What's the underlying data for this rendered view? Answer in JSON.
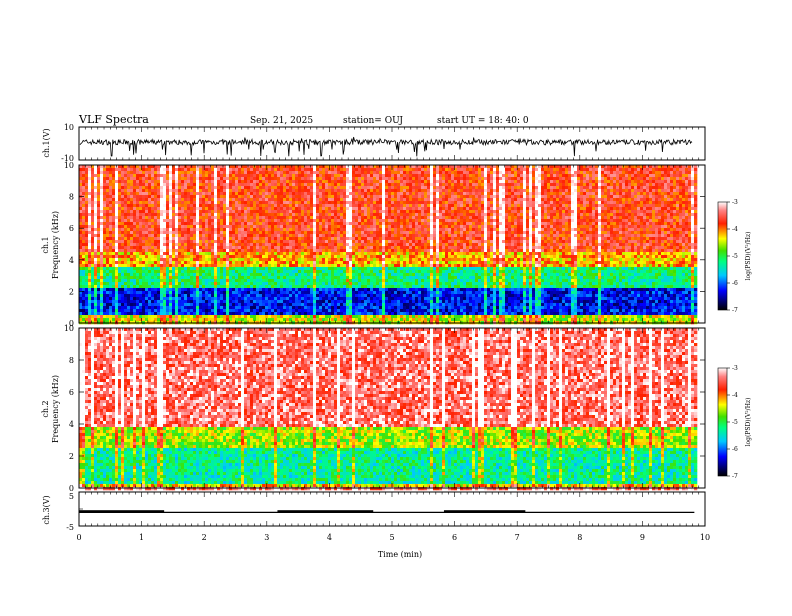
{
  "header": {
    "title": "VLF Spectra",
    "date": "Sep. 21, 2025",
    "station": "station= OUJ",
    "start_ut": "start  UT  =   18: 40: 0"
  },
  "chart_data": [
    {
      "id": "ch1-waveform",
      "type": "line",
      "ylabel": "ch.1(V)",
      "ylim": [
        -10,
        10
      ],
      "yticks": [
        "10",
        "-10"
      ],
      "xlim": [
        0,
        10
      ],
      "description_of_series": "noisy waveform around 0 V with spikes to about -8 V",
      "color": "#000000"
    },
    {
      "id": "ch1-spectrogram",
      "type": "heatmap",
      "ylabel": "ch.1\nFrequency (kHz)",
      "ylabel_lines": [
        "ch.1",
        "Frequency  (kHz)"
      ],
      "ylim": [
        0,
        10
      ],
      "yticks": [
        "0",
        "2",
        "4",
        "6",
        "8",
        "10"
      ],
      "xlim": [
        0,
        9.83
      ],
      "colorbar": {
        "label": "log(PSD)(V²/Hz)",
        "range": [
          -7,
          -3
        ],
        "ticks": [
          "-3",
          "-4",
          "-5",
          "-6",
          "-7"
        ]
      },
      "bands": [
        {
          "from_khz": 0,
          "to_khz": 0.5,
          "log_psd": -4.5
        },
        {
          "from_khz": 0.5,
          "to_khz": 2.2,
          "log_psd": -6.3
        },
        {
          "from_khz": 2.2,
          "to_khz": 3.5,
          "log_psd": -5.2
        },
        {
          "from_khz": 3.5,
          "to_khz": 4.5,
          "log_psd": -4.2
        },
        {
          "from_khz": 4.5,
          "to_khz": 10,
          "log_psd": -3.7
        }
      ]
    },
    {
      "id": "ch2-spectrogram",
      "type": "heatmap",
      "ylabel_lines": [
        "ch.2",
        "Frequency  (kHz)"
      ],
      "ylim": [
        0,
        10
      ],
      "yticks": [
        "0",
        "2",
        "4",
        "6",
        "8",
        "10"
      ],
      "xlim": [
        0,
        9.83
      ],
      "colorbar": {
        "label": "log(PSD)(V²/Hz)",
        "range": [
          -7,
          -3
        ],
        "ticks": [
          "-3",
          "-4",
          "-5",
          "-6",
          "-7"
        ]
      },
      "bands": [
        {
          "from_khz": 0,
          "to_khz": 0.3,
          "log_psd": -4.3
        },
        {
          "from_khz": 0.3,
          "to_khz": 2.5,
          "log_psd": -5.3
        },
        {
          "from_khz": 2.5,
          "to_khz": 3.8,
          "log_psd": -4.6
        },
        {
          "from_khz": 3.8,
          "to_khz": 10,
          "log_psd": -3.4
        }
      ]
    },
    {
      "id": "ch3-digital",
      "type": "line",
      "ylabel": "ch.3(V)",
      "ylim": [
        -5,
        5
      ],
      "yticks": [
        "5",
        "0",
        "-5"
      ],
      "xlim": [
        0,
        10
      ],
      "baseline_v": -1.0,
      "high_segments_min": [
        [
          0,
          1.36
        ],
        [
          3.17,
          4.7
        ],
        [
          5.83,
          7.13
        ]
      ],
      "line_end_min": 9.83,
      "xlabel": "Time  (min)",
      "xticks": [
        "0",
        "1",
        "2",
        "3",
        "4",
        "5",
        "6",
        "7",
        "8",
        "9",
        "10"
      ]
    }
  ]
}
